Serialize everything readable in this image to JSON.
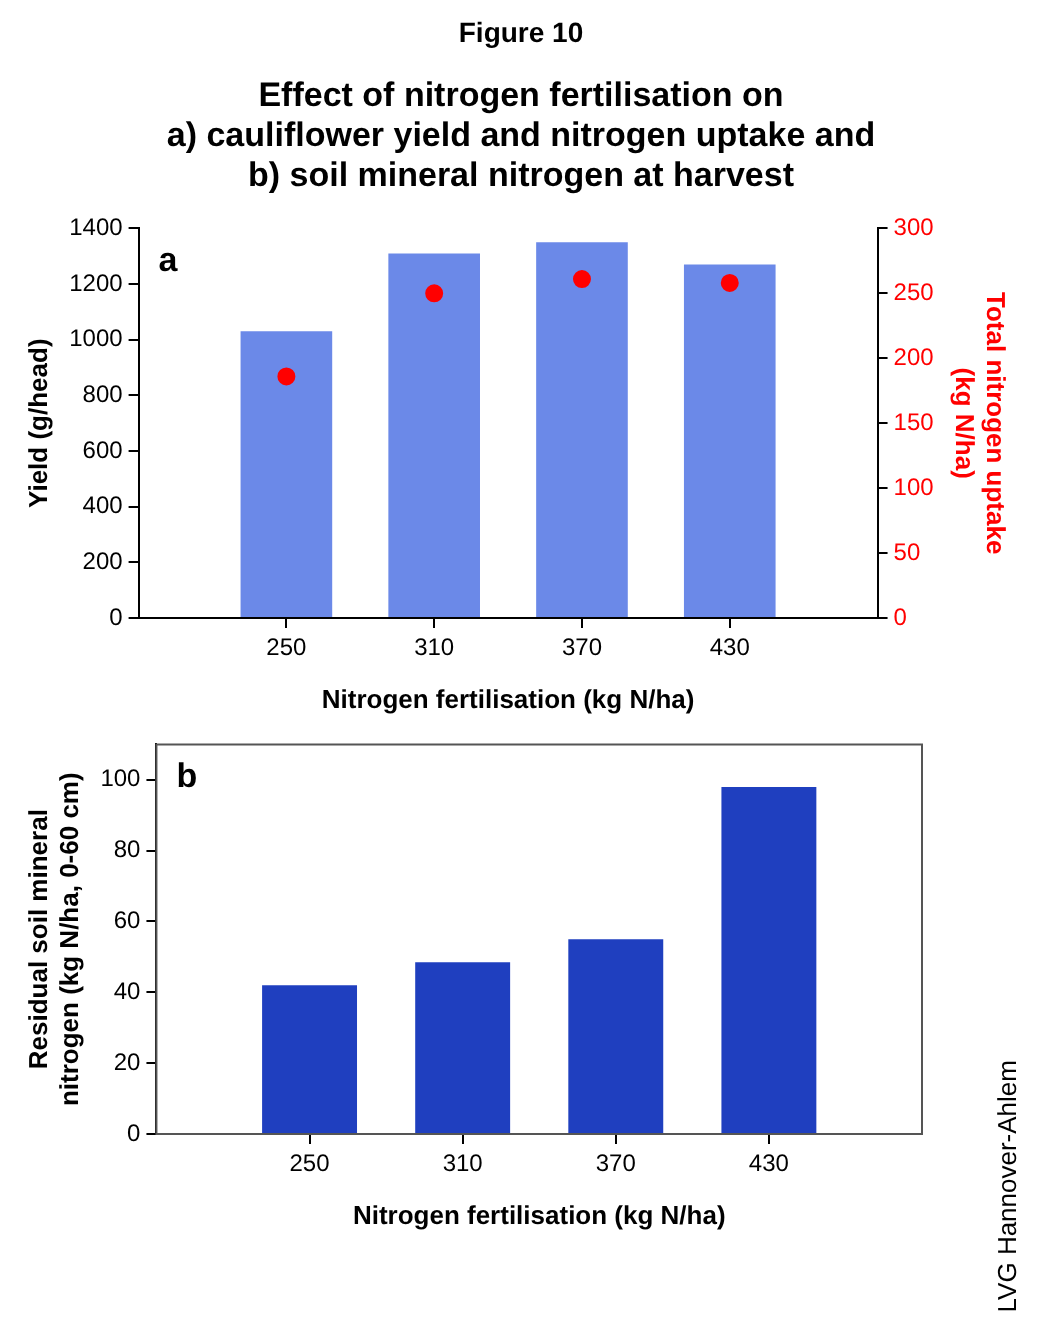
{
  "chart_data": [
    {
      "type": "bar",
      "title": "Figure 10",
      "subtitle": "Effect of nitrogen fertilisation on\na) cauliflower yield and nitrogen uptake and\nb) soil mineral nitrogen at harvest",
      "x": [
        250,
        310,
        370,
        430
      ],
      "xlim": [
        190,
        490
      ],
      "xticks": [
        250,
        310,
        370,
        430
      ],
      "xlabel": "Nitrogen fertilisation (kg N/ha)",
      "ylabel": "Yield (g/head)",
      "y2label": "Total nitrogen uptake\n(kg N/ha)",
      "ylim": [
        0,
        1400
      ],
      "yticks": [
        0,
        200,
        400,
        600,
        800,
        1000,
        1200,
        1400
      ],
      "y2lim": [
        0,
        300
      ],
      "y2ticks": [
        0,
        50,
        100,
        150,
        200,
        250,
        300
      ],
      "series": [
        {
          "color": "#6b89e8",
          "values": [
            1030,
            1310,
            1350,
            1270
          ]
        },
        {
          "type": "scatter",
          "axis": "y2",
          "color": "#ff0000",
          "values": [
            186,
            250,
            261,
            258
          ]
        }
      ],
      "marker": "circle",
      "grid": false,
      "legend": false,
      "annotations": [
        "a"
      ]
    },
    {
      "type": "bar",
      "x": [
        250,
        310,
        370,
        430
      ],
      "xlim": [
        190,
        490
      ],
      "xticks": [
        250,
        310,
        370,
        430
      ],
      "xlabel": "Nitrogen fertilisation (kg N/ha)",
      "ylabel": "Residual soil mineral\nnitrogen (kg N/ha, 0-60 cm)",
      "ylim": [
        0,
        110
      ],
      "yticks": [
        0,
        20,
        40,
        60,
        80,
        100
      ],
      "series": [
        {
          "color": "#1f3fbf",
          "values": [
            42,
            48.5,
            55,
            98
          ]
        }
      ],
      "grid": false,
      "legend": false,
      "annotations": [
        "b",
        "LVG Hannover-Ahlem"
      ]
    }
  ]
}
